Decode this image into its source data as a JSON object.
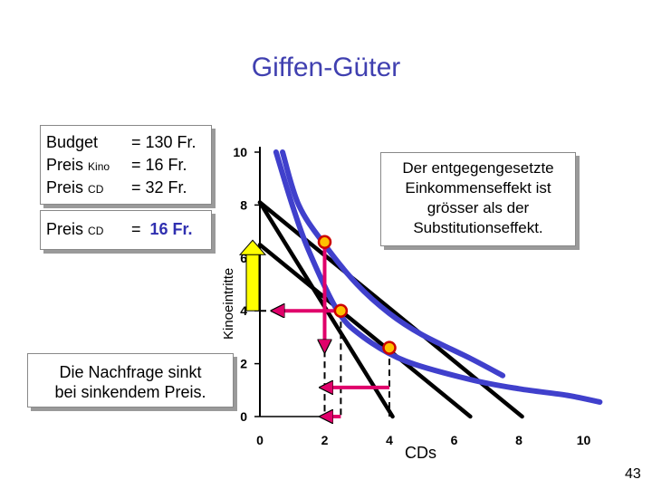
{
  "slide": {
    "title": "Giffen-Güter",
    "page_number": "43"
  },
  "budget_box": {
    "budget_label": "Budget",
    "budget_value": "= 130 Fr.",
    "preis_label": "Preis",
    "kino_sub": "Kino",
    "kino_value": "=  16 Fr.",
    "cd_sub": "CD",
    "cd_value": "=  32 Fr."
  },
  "new_price_box": {
    "preis_label": "Preis",
    "cd_sub": "CD",
    "eq": "=",
    "cd_value": "16 Fr."
  },
  "note_box": {
    "text_lines": [
      "Der entgegengesetzte",
      "Einkommenseffekt ist",
      "grösser als der",
      "Substitutionseffekt."
    ]
  },
  "demand_box": {
    "text_lines": [
      "Die Nachfrage sinkt",
      "bei sinkendem Preis."
    ]
  },
  "colors": {
    "title": "#4040b0",
    "indifference_curve": "#4040cc",
    "budget_line": "#000000",
    "point_fill": "#ffc000",
    "point_border": "#cc0000",
    "arrow_magenta": "#e0006a",
    "arrow_yellow": "#ffff00"
  },
  "chart_data": {
    "type": "line",
    "xlabel": "CDs",
    "ylabel": "Kinoeintritte",
    "xlim": [
      0,
      10
    ],
    "ylim": [
      0,
      10
    ],
    "x_ticks": [
      "0",
      "2",
      "4",
      "6",
      "8",
      "10"
    ],
    "y_ticks": [
      "0",
      "2",
      "4",
      "6",
      "8",
      "10"
    ],
    "budget_lines": [
      {
        "name": "",
        "points": [
          [
            0,
            8.1
          ],
          [
            4.1,
            0
          ]
        ]
      },
      {
        "name": "",
        "points": [
          [
            0,
            8.1
          ],
          [
            8.1,
            0
          ]
        ]
      },
      {
        "name": "",
        "points": [
          [
            0,
            6.5
          ],
          [
            6.5,
            0
          ]
        ]
      }
    ],
    "indifference_curves": [
      {
        "name": "",
        "points": [
          [
            0.5,
            10
          ],
          [
            1.0,
            8.0
          ],
          [
            1.5,
            6.3
          ],
          [
            2.4,
            4.0
          ],
          [
            3.2,
            3.0
          ],
          [
            4.5,
            2.1
          ],
          [
            6.5,
            1.4
          ],
          [
            8.0,
            1.05
          ],
          [
            9.5,
            0.8
          ],
          [
            10.5,
            0.55
          ]
        ]
      },
      {
        "name": "",
        "points": [
          [
            0.7,
            10
          ],
          [
            1.2,
            8.0
          ],
          [
            2.0,
            6.5
          ],
          [
            3.0,
            5.0
          ],
          [
            4.0,
            3.9
          ],
          [
            5.0,
            3.1
          ],
          [
            6.5,
            2.2
          ],
          [
            7.5,
            1.55
          ]
        ]
      }
    ],
    "points": [
      {
        "x": 2.0,
        "y": 6.6
      },
      {
        "x": 2.5,
        "y": 4.0
      },
      {
        "x": 4.0,
        "y": 2.6
      }
    ],
    "guides": [
      {
        "x": 2.0,
        "y": 6.6
      },
      {
        "x": 2.5,
        "y": 4.0
      },
      {
        "x": 4.0,
        "y": 2.6
      }
    ],
    "arrows": [
      {
        "color": "magenta",
        "from": [
          2.5,
          4.0
        ],
        "to": [
          0.5,
          4.0
        ]
      },
      {
        "color": "magenta",
        "from": [
          2.0,
          6.6
        ],
        "to": [
          2.0,
          2.6
        ]
      },
      {
        "color": "magenta",
        "from": [
          4.0,
          1.1
        ],
        "to": [
          2.0,
          1.1
        ]
      },
      {
        "color": "magenta",
        "from": [
          2.5,
          0.0
        ],
        "to": [
          2.0,
          0.0
        ]
      },
      {
        "color": "yellow",
        "from": [
          0.0,
          4.0
        ],
        "to": [
          0.0,
          6.6
        ]
      }
    ]
  }
}
